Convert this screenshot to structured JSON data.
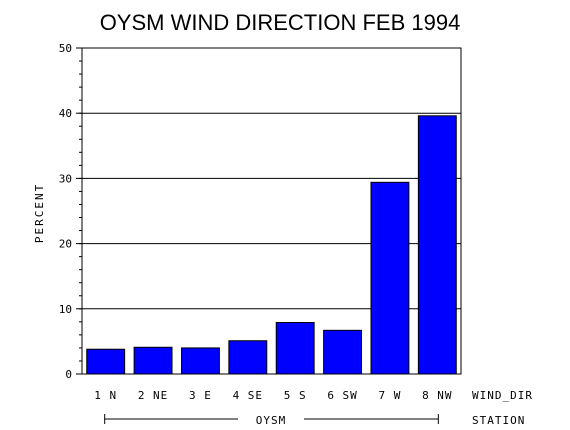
{
  "chart_data": {
    "type": "bar",
    "title": "OYSM WIND DIRECTION FEB 1994",
    "ylabel": "PERCENT",
    "xlabel": "WIND_DIR",
    "group_label": "OYSM",
    "group_axis_label": "STATION",
    "ylim": [
      0,
      50
    ],
    "yticks": [
      0,
      10,
      20,
      30,
      40,
      50
    ],
    "grid": true,
    "categories": [
      "1 N",
      "2 NE",
      "3 E",
      "4 SE",
      "5 S",
      "6 SW",
      "7 W",
      "8 NW"
    ],
    "values": [
      3.8,
      4.1,
      4.0,
      5.1,
      7.9,
      6.7,
      29.4,
      39.6
    ],
    "bar_color": "#0000ff"
  }
}
